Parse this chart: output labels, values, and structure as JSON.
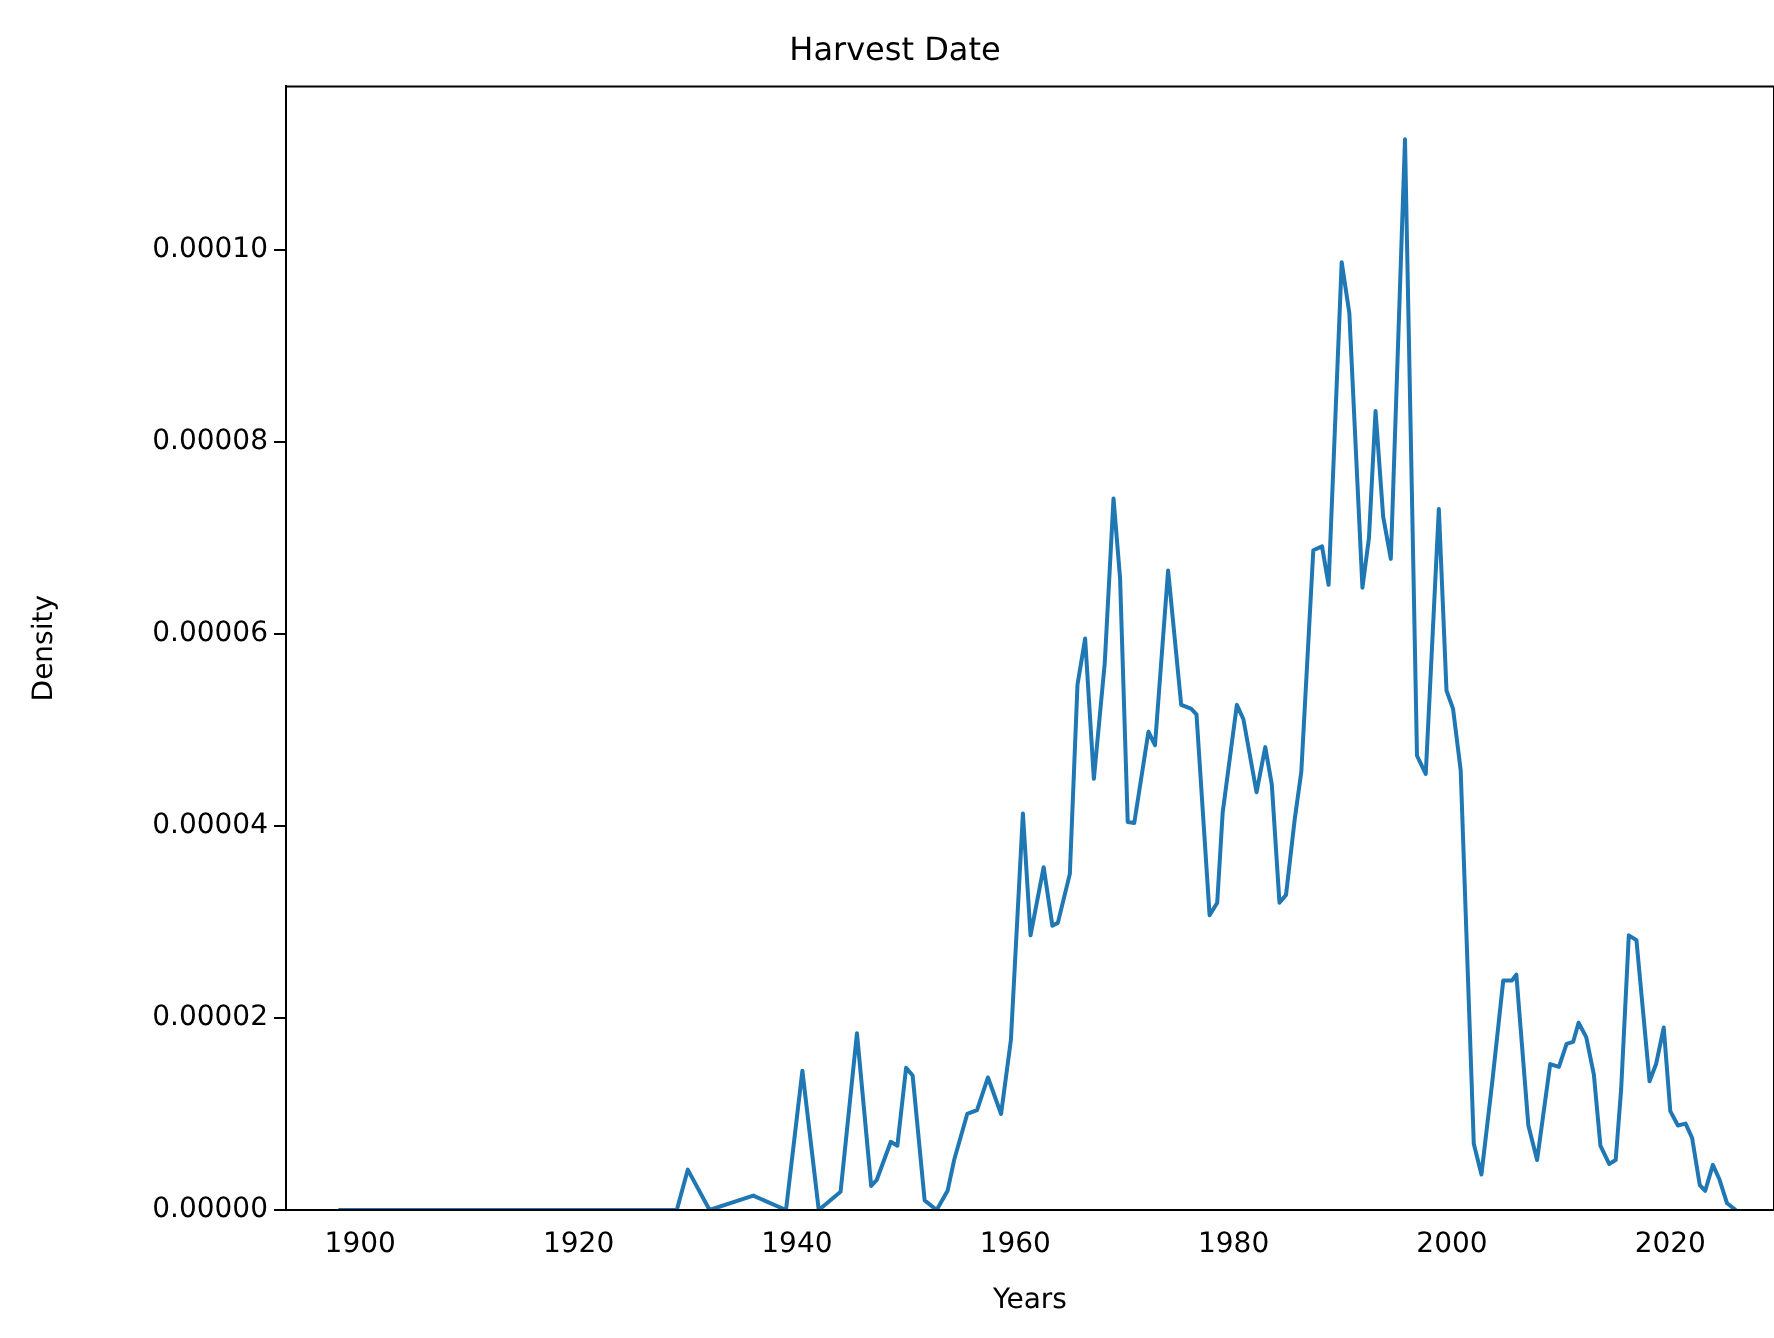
{
  "chart_data": {
    "type": "line",
    "title": "Harvest Date",
    "xlabel": "Years",
    "ylabel": "Density",
    "x": [
      1898,
      1929,
      1930,
      1932,
      1936,
      1939,
      1940.5,
      1942,
      1944,
      1945.5,
      1946.8,
      1947.3,
      1948.6,
      1949.2,
      1950,
      1950.6,
      1951.7,
      1952.8,
      1953.8,
      1954.4,
      1955.6,
      1956.5,
      1957.5,
      1958.7,
      1959.6,
      1960.7,
      1961.4,
      1962.6,
      1963.4,
      1963.9,
      1965,
      1965.7,
      1966.4,
      1967.2,
      1968.2,
      1969,
      1969.6,
      1970.3,
      1970.9,
      1972.2,
      1972.8,
      1974,
      1975.2,
      1976.1,
      1976.6,
      1977.8,
      1978.5,
      1979,
      1980.3,
      1980.9,
      1982.1,
      1982.9,
      1983.5,
      1984.2,
      1984.8,
      1985.6,
      1986.2,
      1987.3,
      1988.1,
      1988.7,
      1989.9,
      1990.6,
      1991.8,
      1992.4,
      1993,
      1993.7,
      1994.4,
      1995.7,
      1996.8,
      1997.6,
      1998.8,
      1999.5,
      2000.1,
      2000.8,
      2002,
      2002.7,
      2003.7,
      2004.7,
      2005.5,
      2005.9,
      2007,
      2007.8,
      2009,
      2009.8,
      2010.5,
      2011.1,
      2011.6,
      2012.3,
      2013,
      2013.6,
      2014.4,
      2015,
      2015.5,
      2016.2,
      2016.9,
      2018.1,
      2018.7,
      2019.4,
      2020,
      2020.7,
      2021.4,
      2022,
      2022.7,
      2023.2,
      2023.9,
      2024.5,
      2025.2,
      2026
    ],
    "series": [
      {
        "color": "#1f77b4",
        "values": [
          0,
          0,
          4.2e-06,
          0,
          1.5e-06,
          0,
          1.45e-05,
          0,
          1.9e-06,
          1.84e-05,
          2.5e-06,
          3.1e-06,
          7.1e-06,
          6.7e-06,
          1.48e-05,
          1.4e-05,
          1e-06,
          0,
          2e-06,
          5.2e-06,
          1e-05,
          1.04e-05,
          1.38e-05,
          1e-05,
          1.77e-05,
          4.13e-05,
          2.86e-05,
          3.57e-05,
          2.96e-05,
          2.99e-05,
          3.5e-05,
          5.47e-05,
          5.95e-05,
          4.49e-05,
          5.7e-05,
          7.41e-05,
          6.58e-05,
          4.04e-05,
          4.03e-05,
          4.98e-05,
          4.84e-05,
          6.66e-05,
          5.26e-05,
          5.22e-05,
          5.16e-05,
          3.07e-05,
          3.2e-05,
          4.14e-05,
          5.26e-05,
          5.11e-05,
          4.35e-05,
          4.82e-05,
          4.43e-05,
          3.2e-05,
          3.28e-05,
          4.07e-05,
          4.56e-05,
          6.87e-05,
          6.91e-05,
          6.51e-05,
          9.87e-05,
          9.34e-05,
          6.48e-05,
          7e-05,
          8.32e-05,
          7.22e-05,
          6.78e-05,
          0.0001115,
          4.73e-05,
          4.54e-05,
          7.3e-05,
          5.41e-05,
          5.22e-05,
          4.58e-05,
          6.9e-06,
          3.7e-06,
          1.34e-05,
          2.39e-05,
          2.39e-05,
          2.45e-05,
          8.8e-06,
          5.2e-06,
          1.52e-05,
          1.49e-05,
          1.73e-05,
          1.75e-05,
          1.95e-05,
          1.8e-05,
          1.41e-05,
          6.7e-06,
          4.8e-06,
          5.2e-06,
          1.26e-05,
          2.86e-05,
          2.81e-05,
          1.34e-05,
          1.52e-05,
          1.9e-05,
          1.03e-05,
          8.8e-06,
          9e-06,
          7.5e-06,
          2.6e-06,
          2e-06,
          4.7e-06,
          3.2e-06,
          7e-07,
          0
        ]
      }
    ],
    "xlim": [
      1893.2,
      2029.5
    ],
    "xticks": [
      1900,
      1920,
      1940,
      1960,
      1980,
      2000,
      2020
    ],
    "ylim": [
      0,
      0.000117
    ],
    "yticks": [
      {
        "value": 0,
        "label": "0.00000"
      },
      {
        "value": 2e-05,
        "label": "0.00002"
      },
      {
        "value": 4e-05,
        "label": "0.00004"
      },
      {
        "value": 6e-05,
        "label": "0.00006"
      },
      {
        "value": 8e-05,
        "label": "0.00008"
      },
      {
        "value": 0.0001,
        "label": "0.00010"
      }
    ],
    "grid": false,
    "legend": false,
    "marker": "none",
    "line_style": "solid"
  }
}
